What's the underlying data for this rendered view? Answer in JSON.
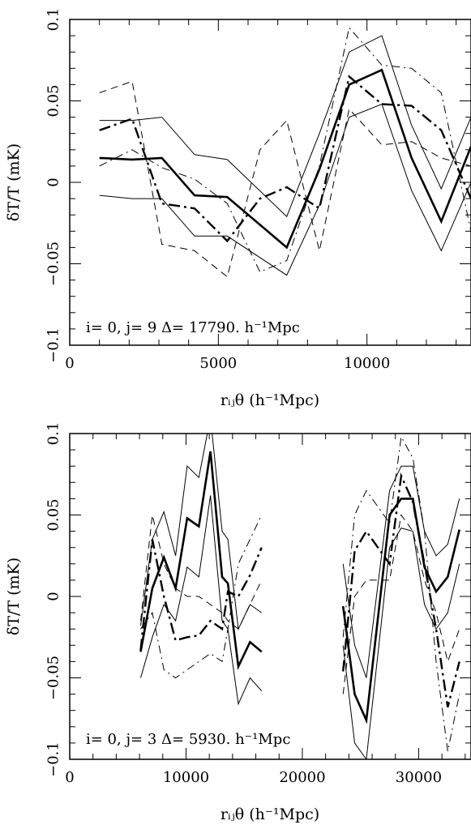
{
  "chart_data": [
    {
      "type": "line",
      "annotation": "i=   0, j=   9 Δ=  17790. h⁻¹Mpc",
      "xlabel": "rᵢⱼθ (h⁻¹Mpc)",
      "ylabel": "δT/T (mK)",
      "xlim": [
        0,
        13500
      ],
      "ylim": [
        -0.1,
        0.1
      ],
      "xticks": [
        {
          "v": 0,
          "t": "0"
        },
        {
          "v": 5000,
          "t": "5000"
        },
        {
          "v": 10000,
          "t": "10000"
        }
      ],
      "yticks": [
        {
          "v": -0.1,
          "t": "−0.1"
        },
        {
          "v": -0.05,
          "t": "−0.05"
        },
        {
          "v": 0,
          "t": "0"
        },
        {
          "v": 0.05,
          "t": "0.05"
        },
        {
          "v": 0.1,
          "t": "0.1"
        }
      ],
      "grid": false,
      "series": [
        {
          "style": "thick",
          "segments": [
            [
              [
                1000,
                0.015
              ],
              [
                2100,
                0.014
              ],
              [
                3100,
                0.015
              ],
              [
                4200,
                -0.008
              ],
              [
                5300,
                -0.009
              ],
              [
                7300,
                -0.04
              ],
              [
                8400,
                0.008
              ],
              [
                9400,
                0.06
              ],
              [
                10500,
                0.069
              ],
              [
                11500,
                0.015
              ],
              [
                12500,
                -0.024
              ],
              [
                13500,
                0.022
              ]
            ]
          ]
        },
        {
          "style": "thin",
          "segments": [
            [
              [
                1000,
                0.038
              ],
              [
                2100,
                0.038
              ],
              [
                3100,
                0.04
              ],
              [
                4200,
                0.017
              ],
              [
                5300,
                0.014
              ],
              [
                7300,
                -0.021
              ],
              [
                8400,
                0.03
              ],
              [
                9400,
                0.08
              ],
              [
                10500,
                0.09
              ],
              [
                11500,
                0.035
              ],
              [
                12500,
                -0.004
              ],
              [
                13500,
                0.04
              ]
            ]
          ]
        },
        {
          "style": "thin",
          "segments": [
            [
              [
                1000,
                -0.008
              ],
              [
                2100,
                -0.01
              ],
              [
                3100,
                -0.01
              ],
              [
                4200,
                -0.033
              ],
              [
                5300,
                -0.033
              ],
              [
                7300,
                -0.057
              ],
              [
                8400,
                -0.014
              ],
              [
                9400,
                0.04
              ],
              [
                10500,
                0.048
              ],
              [
                11500,
                -0.005
              ],
              [
                12500,
                -0.042
              ],
              [
                13500,
                0.0
              ]
            ]
          ]
        },
        {
          "style": "thickdashdot",
          "segments": [
            [
              [
                1000,
                0.032
              ],
              [
                2100,
                0.039
              ],
              [
                3100,
                -0.013
              ],
              [
                4200,
                -0.016
              ],
              [
                5300,
                -0.036
              ],
              [
                6400,
                -0.01
              ],
              [
                7300,
                -0.003
              ],
              [
                8400,
                -0.016
              ],
              [
                9400,
                0.065
              ],
              [
                10500,
                0.048
              ],
              [
                11500,
                0.047
              ],
              [
                12500,
                0.032
              ],
              [
                13500,
                -0.01
              ]
            ]
          ]
        },
        {
          "style": "thindashdot",
          "segments": [
            [
              [
                1000,
                0.01
              ],
              [
                2100,
                0.02
              ],
              [
                3100,
                0.009
              ],
              [
                4200,
                0.002
              ],
              [
                5300,
                -0.013
              ],
              [
                6400,
                -0.055
              ],
              [
                7300,
                -0.048
              ],
              [
                8400,
                0.01
              ],
              [
                9400,
                0.095
              ],
              [
                10500,
                0.072
              ],
              [
                11500,
                0.07
              ],
              [
                12500,
                0.055
              ],
              [
                13500,
                -0.03
              ]
            ]
          ]
        },
        {
          "style": "thindash",
          "segments": [
            [
              [
                1000,
                0.055
              ],
              [
                2100,
                0.062
              ],
              [
                3100,
                -0.038
              ],
              [
                4200,
                -0.042
              ],
              [
                5300,
                -0.058
              ],
              [
                6400,
                0.02
              ],
              [
                7300,
                0.038
              ],
              [
                8400,
                -0.042
              ],
              [
                9400,
                0.045
              ],
              [
                10500,
                0.023
              ],
              [
                11500,
                0.025
              ],
              [
                12500,
                0.015
              ],
              [
                13500,
                0.01
              ]
            ]
          ]
        }
      ]
    },
    {
      "type": "line",
      "annotation": "i=   0, j=   3 Δ=   5930. h⁻¹Mpc",
      "xlabel": "rᵢⱼθ (h⁻¹Mpc)",
      "ylabel": "δT/T (mK)",
      "xlim": [
        0,
        34500
      ],
      "ylim": [
        -0.1,
        0.1
      ],
      "xticks": [
        {
          "v": 0,
          "t": "0"
        },
        {
          "v": 10000,
          "t": "10000"
        },
        {
          "v": 20000,
          "t": "20000"
        },
        {
          "v": 30000,
          "t": "30000"
        }
      ],
      "yticks": [
        {
          "v": -0.1,
          "t": "−0.1"
        },
        {
          "v": -0.05,
          "t": "−0.05"
        },
        {
          "v": 0,
          "t": "0"
        },
        {
          "v": 0.05,
          "t": "0.05"
        },
        {
          "v": 0.1,
          "t": "0.1"
        }
      ],
      "grid": false,
      "series": [
        {
          "style": "thick",
          "segments": [
            [
              [
                6100,
                -0.034
              ],
              [
                7100,
                0.005
              ],
              [
                8100,
                0.024
              ],
              [
                9100,
                0.005
              ],
              [
                10100,
                0.048
              ],
              [
                11100,
                0.043
              ],
              [
                12100,
                0.089
              ],
              [
                13100,
                0.012
              ],
              [
                13600,
                0.008
              ],
              [
                14500,
                -0.043
              ],
              [
                15500,
                -0.028
              ],
              [
                16500,
                -0.034
              ]
            ],
            [
              [
                23500,
                -0.006
              ],
              [
                24500,
                -0.06
              ],
              [
                25500,
                -0.076
              ],
              [
                27500,
                0.05
              ],
              [
                28500,
                0.06
              ],
              [
                29500,
                0.06
              ],
              [
                30500,
                0.018
              ],
              [
                31500,
                0.003
              ],
              [
                32500,
                0.012
              ],
              [
                33500,
                0.041
              ]
            ]
          ]
        },
        {
          "style": "thin",
          "segments": [
            [
              [
                6100,
                -0.018
              ],
              [
                7100,
                0.035
              ],
              [
                8100,
                0.052
              ],
              [
                9100,
                0.025
              ],
              [
                10100,
                0.08
              ],
              [
                11100,
                0.073
              ],
              [
                12100,
                0.11
              ],
              [
                13100,
                0.04
              ],
              [
                13600,
                0.035
              ],
              [
                14500,
                -0.02
              ],
              [
                15500,
                -0.005
              ],
              [
                16500,
                -0.01
              ]
            ],
            [
              [
                23500,
                0.02
              ],
              [
                24500,
                -0.03
              ],
              [
                25500,
                -0.05
              ],
              [
                27500,
                0.065
              ],
              [
                28500,
                0.08
              ],
              [
                29500,
                0.08
              ],
              [
                30500,
                0.04
              ],
              [
                31500,
                0.025
              ],
              [
                32500,
                0.032
              ],
              [
                33500,
                0.06
              ]
            ]
          ]
        },
        {
          "style": "thin",
          "segments": [
            [
              [
                6100,
                -0.05
              ],
              [
                7100,
                -0.025
              ],
              [
                8100,
                -0.005
              ],
              [
                9100,
                -0.015
              ],
              [
                10100,
                0.018
              ],
              [
                11100,
                0.012
              ],
              [
                12100,
                0.062
              ],
              [
                13100,
                -0.015
              ],
              [
                13600,
                -0.02
              ],
              [
                14500,
                -0.066
              ],
              [
                15500,
                -0.05
              ],
              [
                16500,
                -0.058
              ]
            ],
            [
              [
                23500,
                -0.03
              ],
              [
                24500,
                -0.09
              ],
              [
                25500,
                -0.1
              ],
              [
                27500,
                0.03
              ],
              [
                28500,
                0.042
              ],
              [
                29500,
                0.04
              ],
              [
                30500,
                -0.005
              ],
              [
                31500,
                -0.02
              ],
              [
                32500,
                -0.01
              ],
              [
                33500,
                0.02
              ]
            ]
          ]
        },
        {
          "style": "thickdashdot",
          "segments": [
            [
              [
                6100,
                -0.033
              ],
              [
                7100,
                0.035
              ],
              [
                8100,
                0.0
              ],
              [
                9100,
                -0.027
              ],
              [
                10100,
                -0.025
              ],
              [
                11100,
                -0.024
              ],
              [
                12100,
                -0.015
              ],
              [
                13100,
                -0.02
              ],
              [
                13600,
                0.003
              ],
              [
                14500,
                0.0
              ],
              [
                15500,
                0.013
              ],
              [
                16500,
                0.03
              ]
            ],
            [
              [
                23500,
                -0.046
              ],
              [
                24500,
                0.028
              ],
              [
                25500,
                0.04
              ],
              [
                27500,
                0.02
              ],
              [
                28500,
                0.074
              ],
              [
                29500,
                0.058
              ],
              [
                30500,
                0.02
              ],
              [
                31500,
                -0.02
              ],
              [
                32500,
                -0.068
              ],
              [
                33500,
                -0.04
              ]
            ]
          ]
        },
        {
          "style": "thindashdot",
          "segments": [
            [
              [
                6100,
                -0.02
              ],
              [
                7100,
                -0.01
              ],
              [
                8100,
                -0.045
              ],
              [
                9100,
                -0.05
              ],
              [
                10100,
                -0.045
              ],
              [
                11100,
                -0.04
              ],
              [
                12100,
                -0.035
              ],
              [
                13100,
                -0.04
              ],
              [
                13600,
                -0.02
              ],
              [
                14500,
                0.02
              ],
              [
                15500,
                0.035
              ],
              [
                16500,
                0.05
              ]
            ],
            [
              [
                23500,
                -0.025
              ],
              [
                24500,
                0.05
              ],
              [
                25500,
                0.065
              ],
              [
                27500,
                0.045
              ],
              [
                28500,
                0.098
              ],
              [
                29500,
                0.085
              ],
              [
                30500,
                0.04
              ],
              [
                31500,
                -0.04
              ],
              [
                32500,
                -0.095
              ],
              [
                33500,
                -0.06
              ]
            ]
          ]
        },
        {
          "style": "thindash",
          "segments": [
            [
              [
                6100,
                -0.015
              ],
              [
                7100,
                0.05
              ],
              [
                8100,
                0.02
              ],
              [
                9100,
                0.005
              ],
              [
                10100,
                0.0
              ],
              [
                11100,
                0.0
              ],
              [
                12100,
                -0.005
              ],
              [
                13100,
                -0.01
              ],
              [
                13600,
                -0.015
              ],
              [
                14500,
                -0.02
              ],
              [
                15500,
                -0.005
              ],
              [
                16500,
                0.01
              ]
            ],
            [
              [
                23500,
                -0.06
              ],
              [
                24500,
                0.0
              ],
              [
                25500,
                0.01
              ],
              [
                27500,
                0.01
              ],
              [
                28500,
                0.05
              ],
              [
                29500,
                0.04
              ],
              [
                30500,
                0.01
              ],
              [
                31500,
                -0.01
              ],
              [
                32500,
                -0.04
              ],
              [
                33500,
                -0.02
              ]
            ]
          ]
        }
      ]
    }
  ]
}
